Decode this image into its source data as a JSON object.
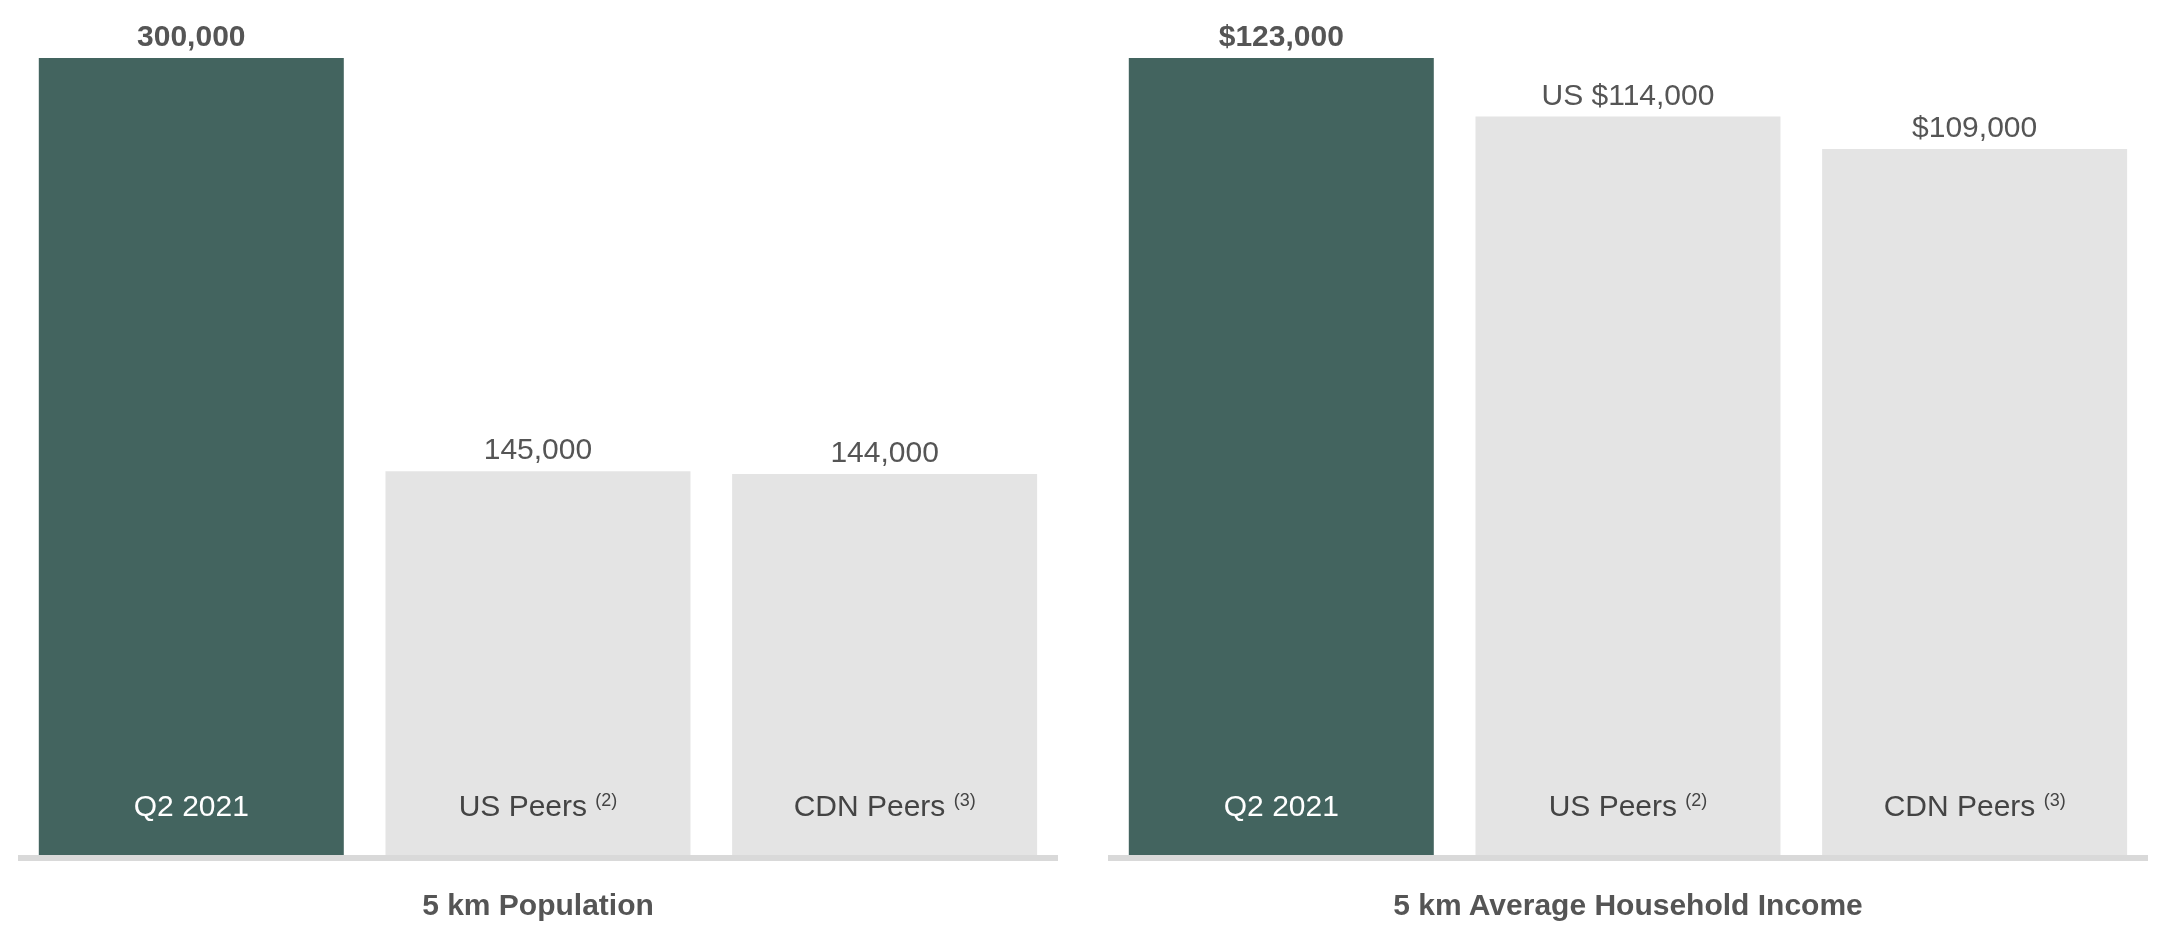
{
  "chart_data": [
    {
      "type": "bar",
      "title": "5 km Population",
      "categories": [
        "Q2 2021",
        "US Peers $^{(2)}$",
        "CDN Peers $^{(3)}$"
      ],
      "values": [
        300000,
        145000,
        144000
      ],
      "colors": [
        "#43645f",
        "#e4e4e4",
        "#e4e4e4"
      ],
      "value_labels": [
        "300,000",
        "145,000",
        "144,000"
      ]
    },
    {
      "type": "bar",
      "title": "5 km Average Household Income",
      "categories": [
        "Q2 2021",
        "US Peers $^{(2)}$",
        "CDN Peers $^{(3)}$"
      ],
      "values": [
        123000,
        114000,
        109000
      ],
      "colors": [
        "#43645f",
        "#e4e4e4",
        "#e4e4e4"
      ],
      "value_labels": [
        "$123,000",
        "US $114,000",
        "$109,000"
      ]
    }
  ]
}
